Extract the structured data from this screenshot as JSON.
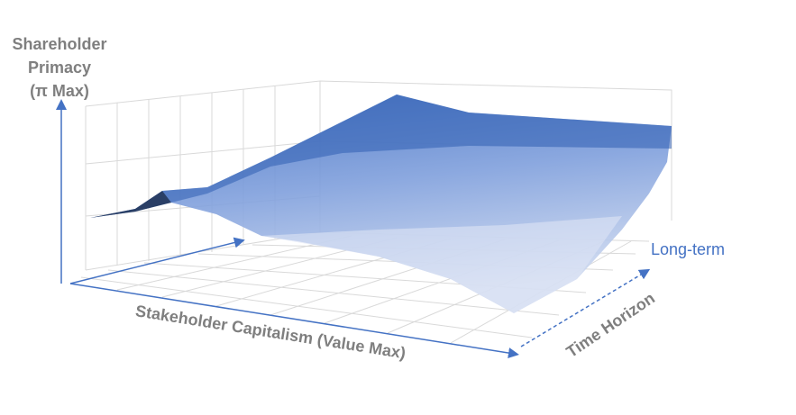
{
  "chart_data": {
    "type": "surface",
    "z_label_lines": [
      "Shareholder",
      "Primacy",
      "(π Max)"
    ],
    "x_label": "Stakeholder Capitalism (Value Max)",
    "y_label": "Time Horizon",
    "annotation": "Long-term"
  }
}
